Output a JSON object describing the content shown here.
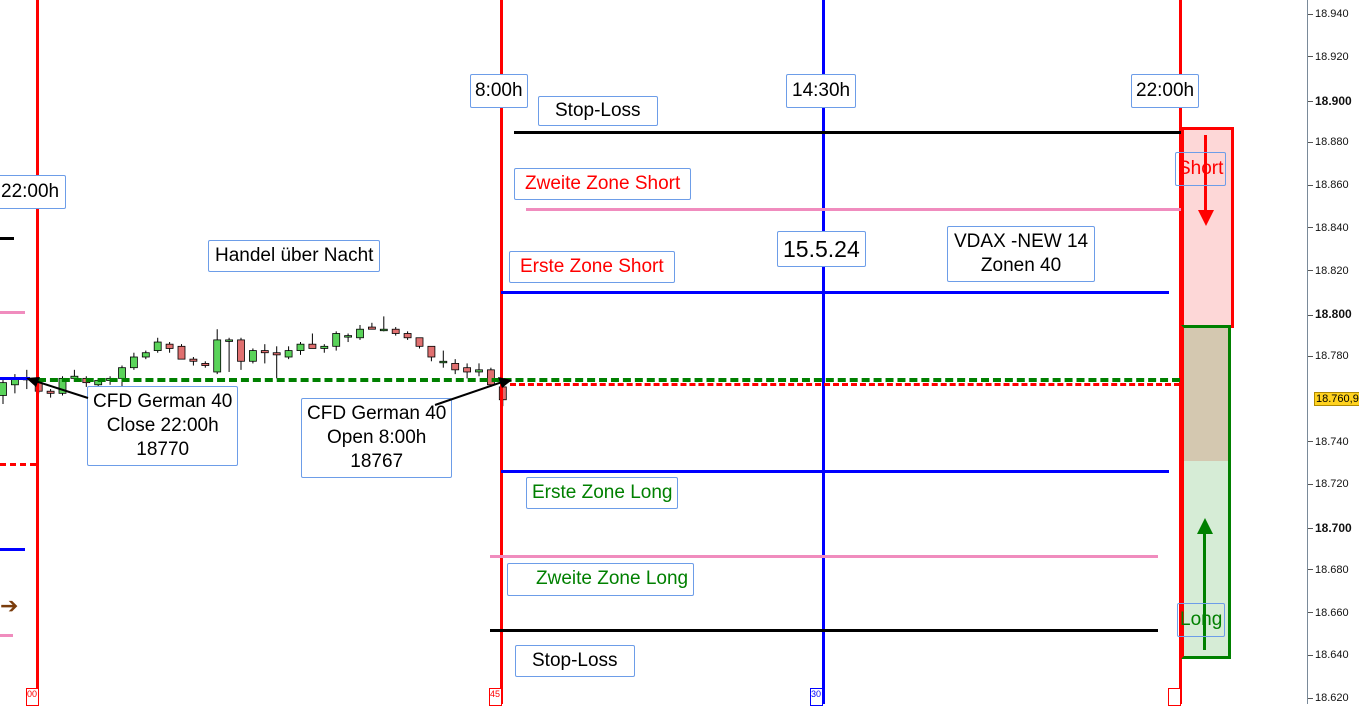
{
  "colors": {
    "up": "#5ad35a",
    "down": "#e07070",
    "red": "#ff0000",
    "blue": "#0000ff",
    "green": "#008000",
    "pink": "#f08cbe",
    "black": "#000000",
    "short_fill": "#fdd7d7",
    "neutral_fill": "#d4c8b0",
    "long_fill": "#d6ecd6"
  },
  "time_labels": [
    "22:00h",
    "8:00h",
    "14:30h",
    "22:00h"
  ],
  "zone_labels": {
    "stop_loss_top": "Stop-Loss",
    "zweite_short": "Zweite Zone Short",
    "erste_short": "Erste Zone Short",
    "erste_long": "Erste Zone Long",
    "zweite_long": "Zweite Zone Long",
    "stop_loss_bottom": "Stop-Loss"
  },
  "annotations": {
    "overnight": "Handel über Nacht",
    "date": "15.5.24",
    "vdax_line1": "VDAX -NEW 14",
    "vdax_line2": "Zonen 40",
    "close_line1": "CFD German 40",
    "close_line2": "Close 22:00h",
    "close_line3": "18770",
    "open_line1": "CFD German 40",
    "open_line2": "Open 8:00h",
    "open_line3": "18767",
    "short": "Short",
    "long": "Long"
  },
  "bottom_time_tags": [
    "00",
    "45",
    "30"
  ],
  "chart_data": {
    "type": "candlestick",
    "yaxis": {
      "min": 18620,
      "max": 18940,
      "ticks": [
        "18.940",
        "18.920",
        "18.900",
        "18.880",
        "18.860",
        "18.840",
        "18.820",
        "18.800",
        "18.780",
        "18.760,9",
        "18.740",
        "18.720",
        "18.700",
        "18.680",
        "18.660",
        "18.640",
        "18.620"
      ],
      "current_price": "18.760,9"
    },
    "levels": {
      "stop_loss_top": 18885,
      "zweite_zone_short": 18849,
      "erste_zone_short": 18810,
      "close_prev": 18770,
      "open": 18767,
      "erste_zone_long": 18727,
      "zweite_zone_long": 18687,
      "stop_loss_bottom": 18652
    },
    "candles": [
      [
        18762,
        18770,
        18758,
        18768
      ],
      [
        18767,
        18772,
        18763,
        18770
      ],
      [
        18770,
        18774,
        18765,
        18770
      ],
      [
        18768,
        18770,
        18763,
        18764
      ],
      [
        18764,
        18765,
        18761,
        18763
      ],
      [
        18763,
        18771,
        18762,
        18770
      ],
      [
        18770,
        18774,
        18769,
        18771
      ],
      [
        18770,
        18771,
        18766,
        18768
      ],
      [
        18767,
        18770,
        18765,
        18769
      ],
      [
        18769,
        18771,
        18767,
        18770
      ],
      [
        18770,
        18776,
        18765,
        18775
      ],
      [
        18775,
        18782,
        18774,
        18780
      ],
      [
        18780,
        18783,
        18779,
        18782
      ],
      [
        18783,
        18789,
        18782,
        18787
      ],
      [
        18786,
        18787,
        18782,
        18784
      ],
      [
        18785,
        18786,
        18779,
        18779
      ],
      [
        18779,
        18780,
        18776,
        18778
      ],
      [
        18777,
        18778,
        18775,
        18776
      ],
      [
        18773,
        18793,
        18772,
        18788
      ],
      [
        18788,
        18789,
        18773,
        18788
      ],
      [
        18788,
        18789,
        18774,
        18778
      ],
      [
        18778,
        18784,
        18777,
        18783
      ],
      [
        18783,
        18786,
        18777,
        18782
      ],
      [
        18782,
        18785,
        18770,
        18781
      ],
      [
        18780,
        18785,
        18779,
        18783
      ],
      [
        18783,
        18787,
        18781,
        18786
      ],
      [
        18786,
        18791,
        18785,
        18784
      ],
      [
        18784,
        18786,
        18782,
        18785
      ],
      [
        18785,
        18792,
        18783,
        18791
      ],
      [
        18790,
        18791,
        18787,
        18790
      ],
      [
        18789,
        18795,
        18788,
        18793
      ],
      [
        18794,
        18796,
        18793,
        18793
      ],
      [
        18793,
        18799,
        18792,
        18793
      ],
      [
        18793,
        18794,
        18790,
        18791
      ],
      [
        18791,
        18792,
        18788,
        18789
      ],
      [
        18789,
        18789,
        18784,
        18785
      ],
      [
        18785,
        18785,
        18778,
        18780
      ],
      [
        18778,
        18783,
        18775,
        18778
      ],
      [
        18777,
        18779,
        18772,
        18774
      ],
      [
        18775,
        18777,
        18770,
        18773
      ],
      [
        18773,
        18777,
        18771,
        18774
      ],
      [
        18774,
        18775,
        18766,
        18767
      ],
      [
        18766,
        18768,
        18757,
        18760
      ]
    ]
  }
}
